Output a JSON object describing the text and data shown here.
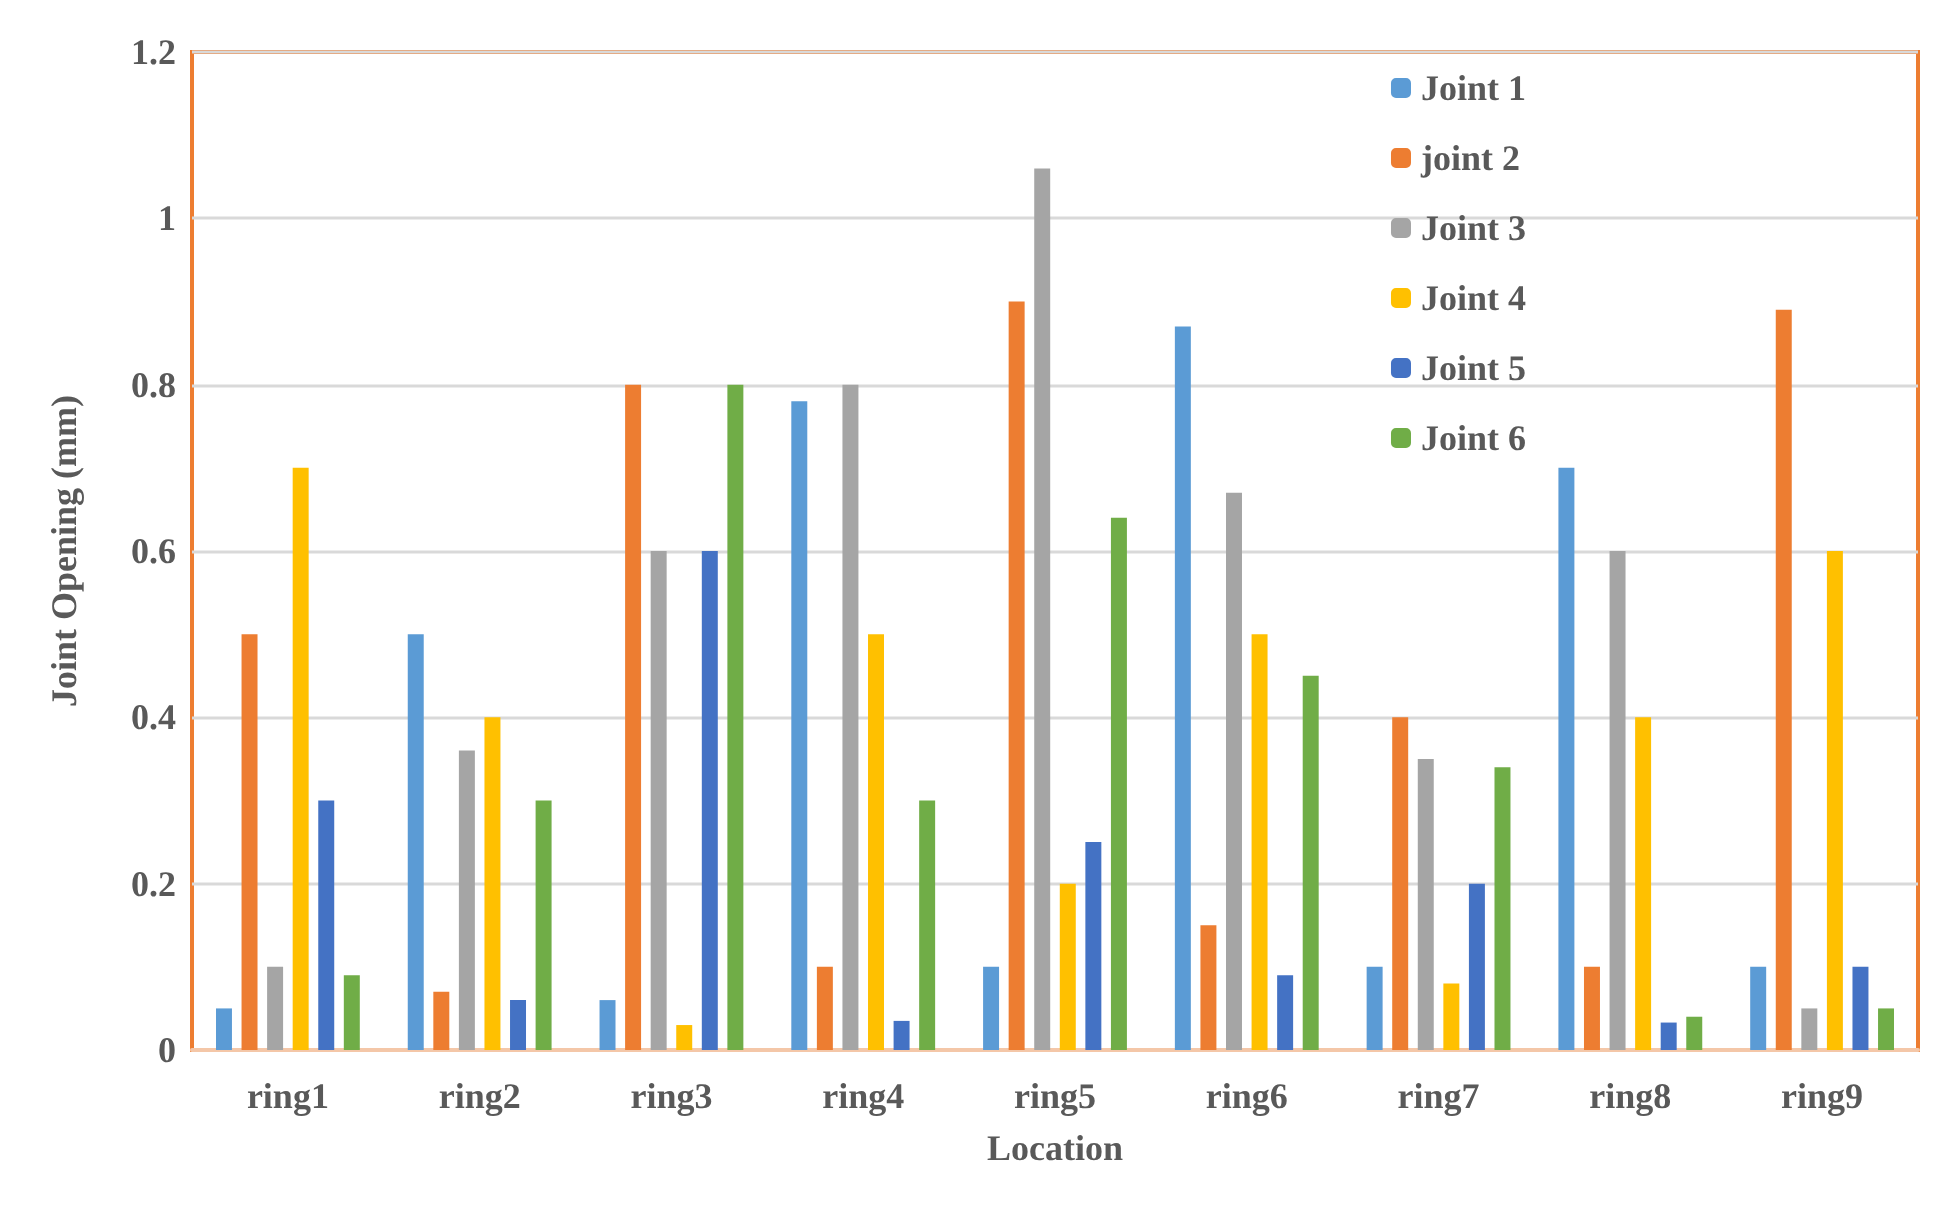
{
  "chart_data": {
    "type": "bar",
    "xlabel": "Location",
    "ylabel": "Joint Opening (mm)",
    "categories": [
      "ring1",
      "ring2",
      "ring3",
      "ring4",
      "ring5",
      "ring6",
      "ring7",
      "ring8",
      "ring9"
    ],
    "series": [
      {
        "name": "Joint 1",
        "color": "#5b9bd5",
        "values": [
          0.05,
          0.5,
          0.06,
          0.78,
          0.1,
          0.87,
          0.1,
          0.7,
          0.1
        ]
      },
      {
        "name": "joint 2",
        "color": "#ed7d31",
        "values": [
          0.5,
          0.07,
          0.8,
          0.1,
          0.9,
          0.15,
          0.4,
          0.1,
          0.89
        ]
      },
      {
        "name": "Joint 3",
        "color": "#a5a5a5",
        "values": [
          0.1,
          0.36,
          0.6,
          0.8,
          1.06,
          0.67,
          0.35,
          0.6,
          0.05
        ]
      },
      {
        "name": "Joint 4",
        "color": "#ffc000",
        "values": [
          0.7,
          0.4,
          0.03,
          0.5,
          0.2,
          0.5,
          0.08,
          0.4,
          0.6
        ]
      },
      {
        "name": "Joint 5",
        "color": "#4472c4",
        "values": [
          0.3,
          0.06,
          0.6,
          0.035,
          0.25,
          0.09,
          0.2,
          0.033,
          0.1
        ]
      },
      {
        "name": "Joint 6",
        "color": "#70ad47",
        "values": [
          0.09,
          0.3,
          0.8,
          0.3,
          0.64,
          0.45,
          0.34,
          0.04,
          0.05
        ]
      }
    ],
    "ylim": [
      0,
      1.2
    ],
    "yticks": [
      0,
      0.2,
      0.4,
      0.6,
      0.8,
      1,
      1.2
    ],
    "grid": "y",
    "legend": "top right"
  }
}
